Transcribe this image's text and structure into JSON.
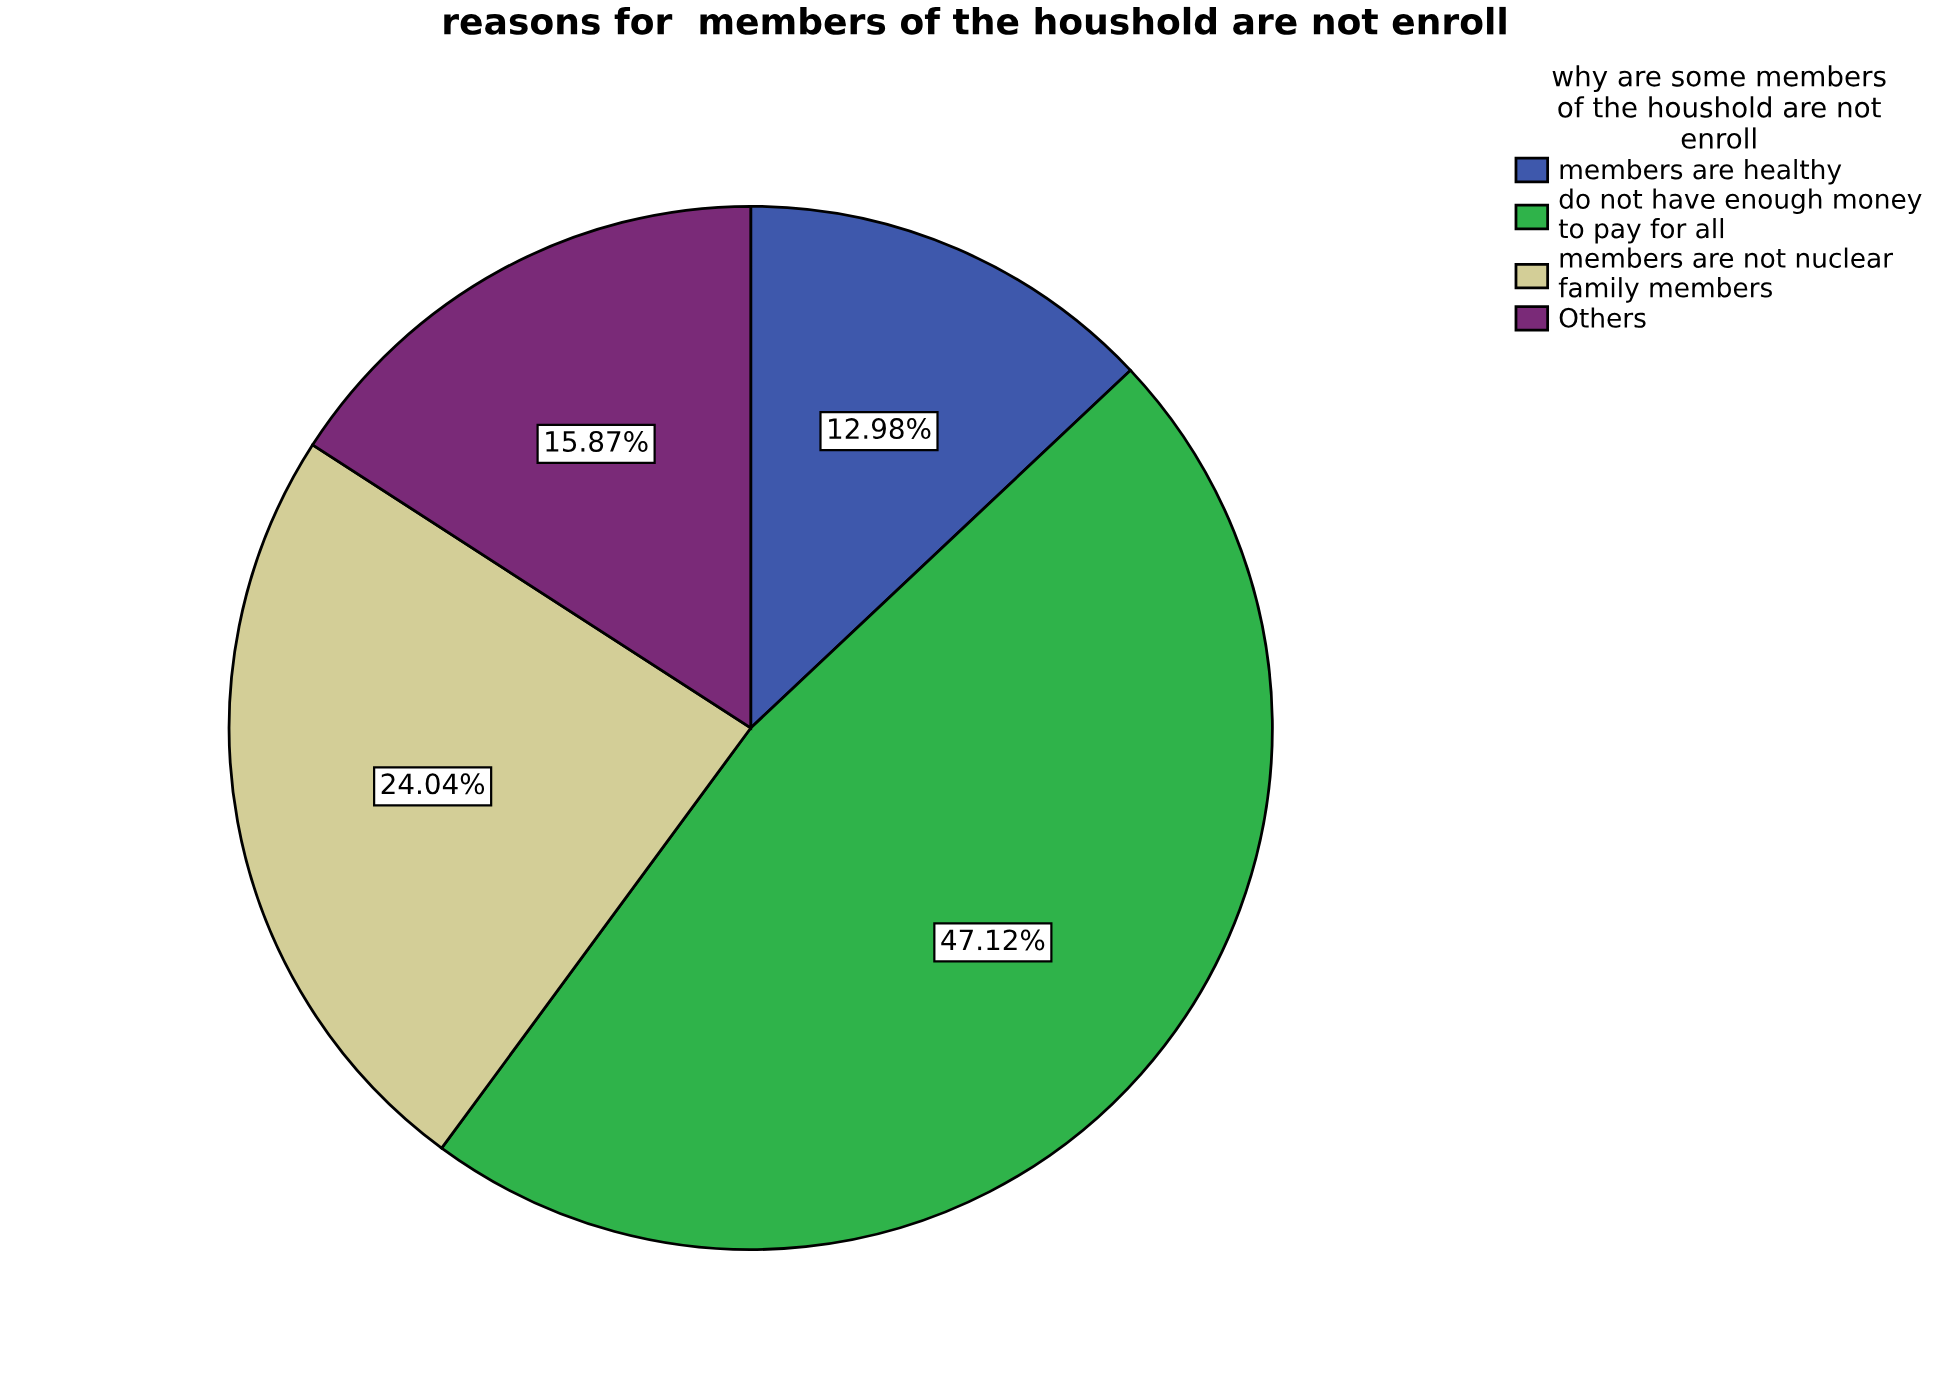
{
  "chart_data": {
    "type": "pie",
    "title": "reasons for  members of the houshold are not enroll",
    "legend_title": "why are some members\nof the houshold are not\nenroll",
    "categories": [
      "members are healthy",
      "do not have enough money\nto pay for all",
      "members are not nuclear\nfamily members",
      "Others"
    ],
    "values": [
      12.98,
      47.12,
      24.04,
      15.87
    ],
    "value_labels": [
      "12.98%",
      "47.12%",
      "24.04%",
      "15.87%"
    ],
    "colors": [
      "#3e58ac",
      "#2fb34a",
      "#d3ce97",
      "#7a2a78"
    ],
    "legend": "top right"
  }
}
